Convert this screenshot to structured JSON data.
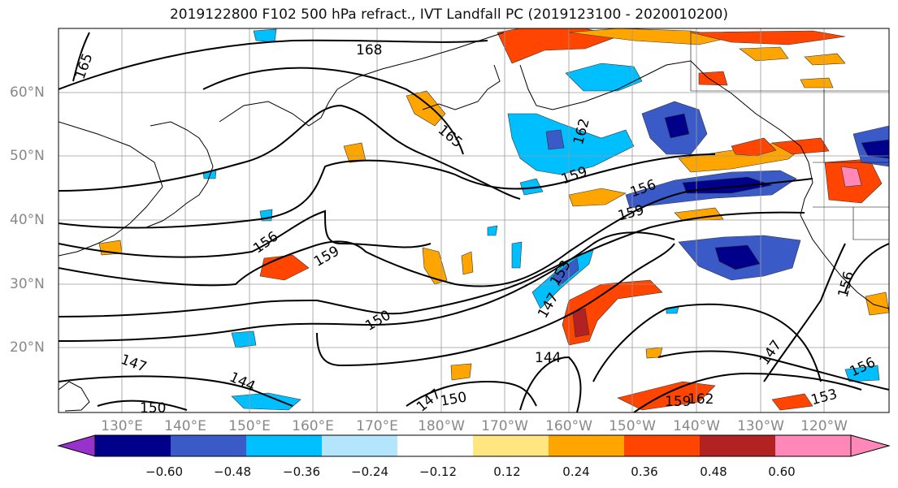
{
  "title": "2019122800 F102 500 hPa refract., IVT Landfall PC (2019123100 - 2020010200)",
  "lat_labels": [
    "60°N",
    "50°N",
    "40°N",
    "30°N",
    "20°N"
  ],
  "lon_labels": [
    "130°E",
    "140°E",
    "150°E",
    "160°E",
    "170°E",
    "180°W",
    "170°W",
    "160°W",
    "150°W",
    "140°W",
    "130°W",
    "120°W"
  ],
  "contour_labels": [
    "168",
    "165",
    "165",
    "162",
    "159",
    "159",
    "159",
    "156",
    "156",
    "156",
    "156",
    "153",
    "153",
    "150",
    "150",
    "150",
    "147",
    "147",
    "147",
    "147",
    "144",
    "144",
    "162",
    "159"
  ],
  "colorbar": {
    "ticks": [
      "−0.60",
      "−0.48",
      "−0.36",
      "−0.24",
      "−0.12",
      "0.12",
      "0.24",
      "0.36",
      "0.48",
      "0.60"
    ],
    "colors": [
      "#9932CC",
      "#00008B",
      "#3A5BC7",
      "#00BFFF",
      "#B3E5FC",
      "#FFFFFF",
      "#FFE680",
      "#FFA500",
      "#FF4500",
      "#B22222",
      "#FF88B8"
    ]
  }
}
